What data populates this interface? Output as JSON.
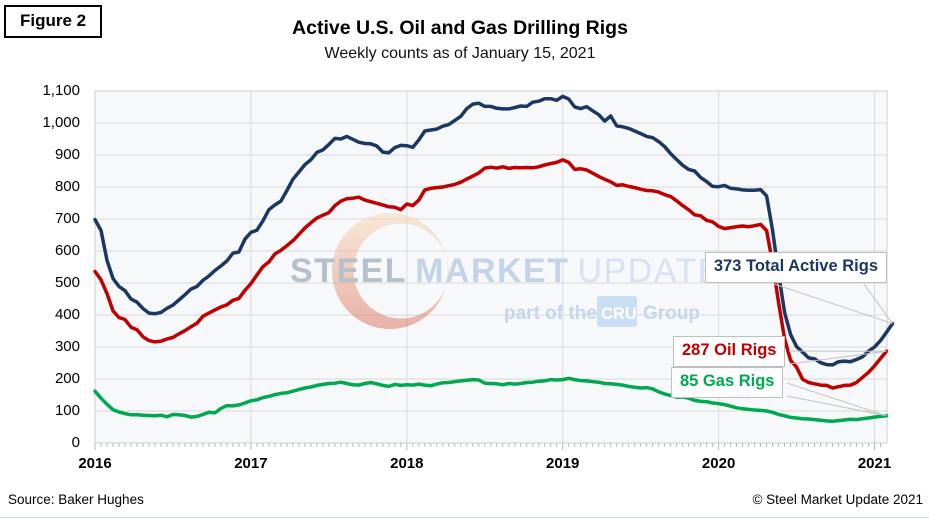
{
  "figure_label": "Figure 2",
  "header": {
    "title": "Active U.S. Oil and Gas Drilling Rigs",
    "subtitle": "Weekly counts as of January 15, 2021"
  },
  "watermark": {
    "word1": "STEEL",
    "word2": "MARKET",
    "word3": "UPDATE",
    "tagline_prefix": "part of the",
    "tagline_badge": "CRU",
    "tagline_suffix": "Group",
    "word1_color": "#b5c0cd",
    "word2_color": "#c4d4e8",
    "word3_color": "#d7e1ef",
    "tagline_color": "#c3d6ec",
    "badge_bg": "#cadff3",
    "badge_text_color": "#ffffff",
    "crescent_top_color": "#f7d9b5",
    "crescent_bottom_color": "#d96a55"
  },
  "footer": {
    "source": "Source: Baker Hughes",
    "copyright": "© Steel Market Update 2021"
  },
  "chart_data": {
    "type": "line",
    "title": "Active U.S. Oil and Gas Drilling Rigs",
    "subtitle": "Weekly counts as of January 15, 2021",
    "xlim": [
      2016,
      2021.08
    ],
    "ylim": [
      0,
      1100
    ],
    "grid": true,
    "plot_bg": "#f7f8fa",
    "grid_color": "#d9d9d9",
    "tick_color": "#b9b9b9",
    "leader_color": "#c2c2c2",
    "x_ticks": [
      {
        "label": "2016",
        "value": 2016
      },
      {
        "label": "2017",
        "value": 2017
      },
      {
        "label": "2018",
        "value": 2018
      },
      {
        "label": "2019",
        "value": 2019
      },
      {
        "label": "2020",
        "value": 2020
      },
      {
        "label": "2021",
        "value": 2021
      }
    ],
    "y_ticks": [
      {
        "label": "0",
        "value": 0
      },
      {
        "label": "100",
        "value": 100
      },
      {
        "label": "200",
        "value": 200
      },
      {
        "label": "300",
        "value": 300
      },
      {
        "label": "400",
        "value": 400
      },
      {
        "label": "500",
        "value": 500
      },
      {
        "label": "600",
        "value": 600
      },
      {
        "label": "700",
        "value": 700
      },
      {
        "label": "800",
        "value": 800
      },
      {
        "label": "900",
        "value": 900
      },
      {
        "label": "1,000",
        "value": 1000
      },
      {
        "label": "1,100",
        "value": 1100
      }
    ],
    "series": [
      {
        "name": "Total Active Rigs",
        "color": "#1b3764",
        "x_start": 2016,
        "x_step": 0.0384615,
        "values": [
          698,
          664,
          571,
          514,
          489,
          476,
          450,
          440,
          420,
          406,
          404,
          408,
          421,
          431,
          447,
          463,
          481,
          489,
          508,
          522,
          539,
          553,
          569,
          593,
          597,
          637,
          658,
          665,
          694,
          729,
          744,
          756,
          789,
          824,
          847,
          870,
          885,
          908,
          916,
          933,
          952,
          950,
          958,
          949,
          940,
          936,
          935,
          928,
          909,
          907,
          923,
          930,
          929,
          924,
          947,
          975,
          978,
          981,
          990,
          995,
          1008,
          1021,
          1045,
          1059,
          1062,
          1052,
          1052,
          1046,
          1044,
          1044,
          1048,
          1053,
          1052,
          1065,
          1068,
          1076,
          1076,
          1071,
          1083,
          1075,
          1050,
          1045,
          1051,
          1038,
          1026,
          1006,
          1022,
          991,
          988,
          983,
          975,
          967,
          958,
          954,
          942,
          926,
          904,
          886,
          868,
          855,
          850,
          830,
          817,
          802,
          801,
          805,
          796,
          794,
          791,
          790,
          790,
          792,
          772,
          664,
          529,
          408,
          339,
          301,
          284,
          266,
          263,
          251,
          245,
          244,
          254,
          256,
          254,
          261,
          269,
          287,
          300,
          320,
          346,
          373
        ]
      },
      {
        "name": "Oil Rigs",
        "color": "#c00000",
        "x_start": 2016,
        "x_step": 0.0384615,
        "values": [
          536,
          510,
          467,
          413,
          392,
          386,
          362,
          354,
          332,
          320,
          316,
          318,
          325,
          330,
          341,
          351,
          363,
          374,
          396,
          406,
          416,
          425,
          432,
          446,
          452,
          477,
          498,
          525,
          551,
          566,
          591,
          602,
          617,
          632,
          652,
          672,
          688,
          703,
          712,
          720,
          742,
          756,
          763,
          765,
          768,
          759,
          754,
          749,
          744,
          738,
          737,
          729,
          747,
          742,
          759,
          791,
          796,
          798,
          800,
          804,
          808,
          815,
          825,
          834,
          844,
          859,
          862,
          859,
          863,
          858,
          861,
          860,
          861,
          860,
          863,
          869,
          873,
          877,
          885,
          877,
          855,
          857,
          853,
          843,
          833,
          824,
          816,
          805,
          807,
          802,
          798,
          793,
          789,
          788,
          784,
          776,
          770,
          757,
          742,
          729,
          713,
          710,
          696,
          691,
          677,
          670,
          673,
          676,
          678,
          676,
          679,
          683,
          664,
          562,
          438,
          325,
          258,
          237,
          199,
          189,
          185,
          181,
          180,
          172,
          176,
          180,
          181,
          189,
          205,
          221,
          241,
          264,
          287
        ]
      },
      {
        "name": "Gas Rigs",
        "color": "#00a94f",
        "x_start": 2016,
        "x_step": 0.0384615,
        "values": [
          162,
          140,
          121,
          104,
          97,
          92,
          88,
          88,
          87,
          86,
          85,
          87,
          82,
          89,
          88,
          86,
          81,
          83,
          89,
          96,
          94,
          108,
          117,
          116,
          119,
          125,
          132,
          135,
          142,
          146,
          151,
          155,
          157,
          162,
          167,
          172,
          175,
          180,
          183,
          186,
          187,
          190,
          186,
          182,
          181,
          186,
          189,
          185,
          180,
          177,
          183,
          180,
          182,
          181,
          184,
          181,
          179,
          184,
          188,
          189,
          192,
          194,
          196,
          198,
          197,
          187,
          186,
          185,
          182,
          186,
          184,
          186,
          189,
          190,
          193,
          194,
          198,
          197,
          198,
          202,
          198,
          195,
          194,
          192,
          190,
          186,
          185,
          183,
          181,
          177,
          174,
          172,
          173,
          169,
          160,
          153,
          148,
          143,
          144,
          140,
          133,
          130,
          129,
          125,
          123,
          120,
          115,
          110,
          107,
          105,
          103,
          102,
          100,
          96,
          89,
          85,
          80,
          78,
          76,
          75,
          73,
          71,
          69,
          68,
          70,
          72,
          74,
          73,
          76,
          78,
          81,
          83,
          85
        ]
      }
    ],
    "annotations": [
      {
        "id": "total",
        "label": "373 Total Active Rigs",
        "value": 373,
        "color": "#1b3764",
        "series": 0
      },
      {
        "id": "oil",
        "label": "287 Oil Rigs",
        "value": 287,
        "color": "#c00000",
        "series": 1
      },
      {
        "id": "gas",
        "label": "85 Gas Rigs",
        "value": 85,
        "color": "#00a94f",
        "series": 2
      }
    ]
  }
}
